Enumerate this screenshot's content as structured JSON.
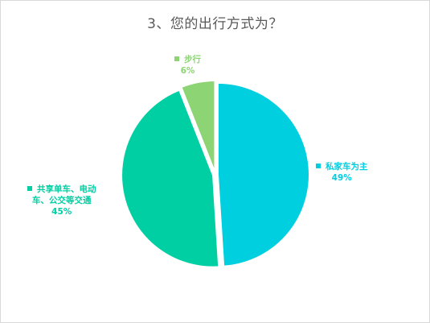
{
  "chart_data": {
    "type": "pie",
    "title": "3、您的出行方式为？",
    "slices": [
      {
        "label": "私家车为主",
        "label_lines": [
          "私家车为主"
        ],
        "value": 49,
        "display": "49%",
        "color": "#00CFE0"
      },
      {
        "label": "共享单车、电动车、公交等交通",
        "label_lines": [
          "共享单车、电动",
          "车、公交等交通"
        ],
        "value": 45,
        "display": "45%",
        "color": "#00CFA4"
      },
      {
        "label": "步行",
        "label_lines": [
          "步行"
        ],
        "value": 6,
        "display": "6%",
        "color": "#8CD474"
      }
    ],
    "legend": false
  }
}
